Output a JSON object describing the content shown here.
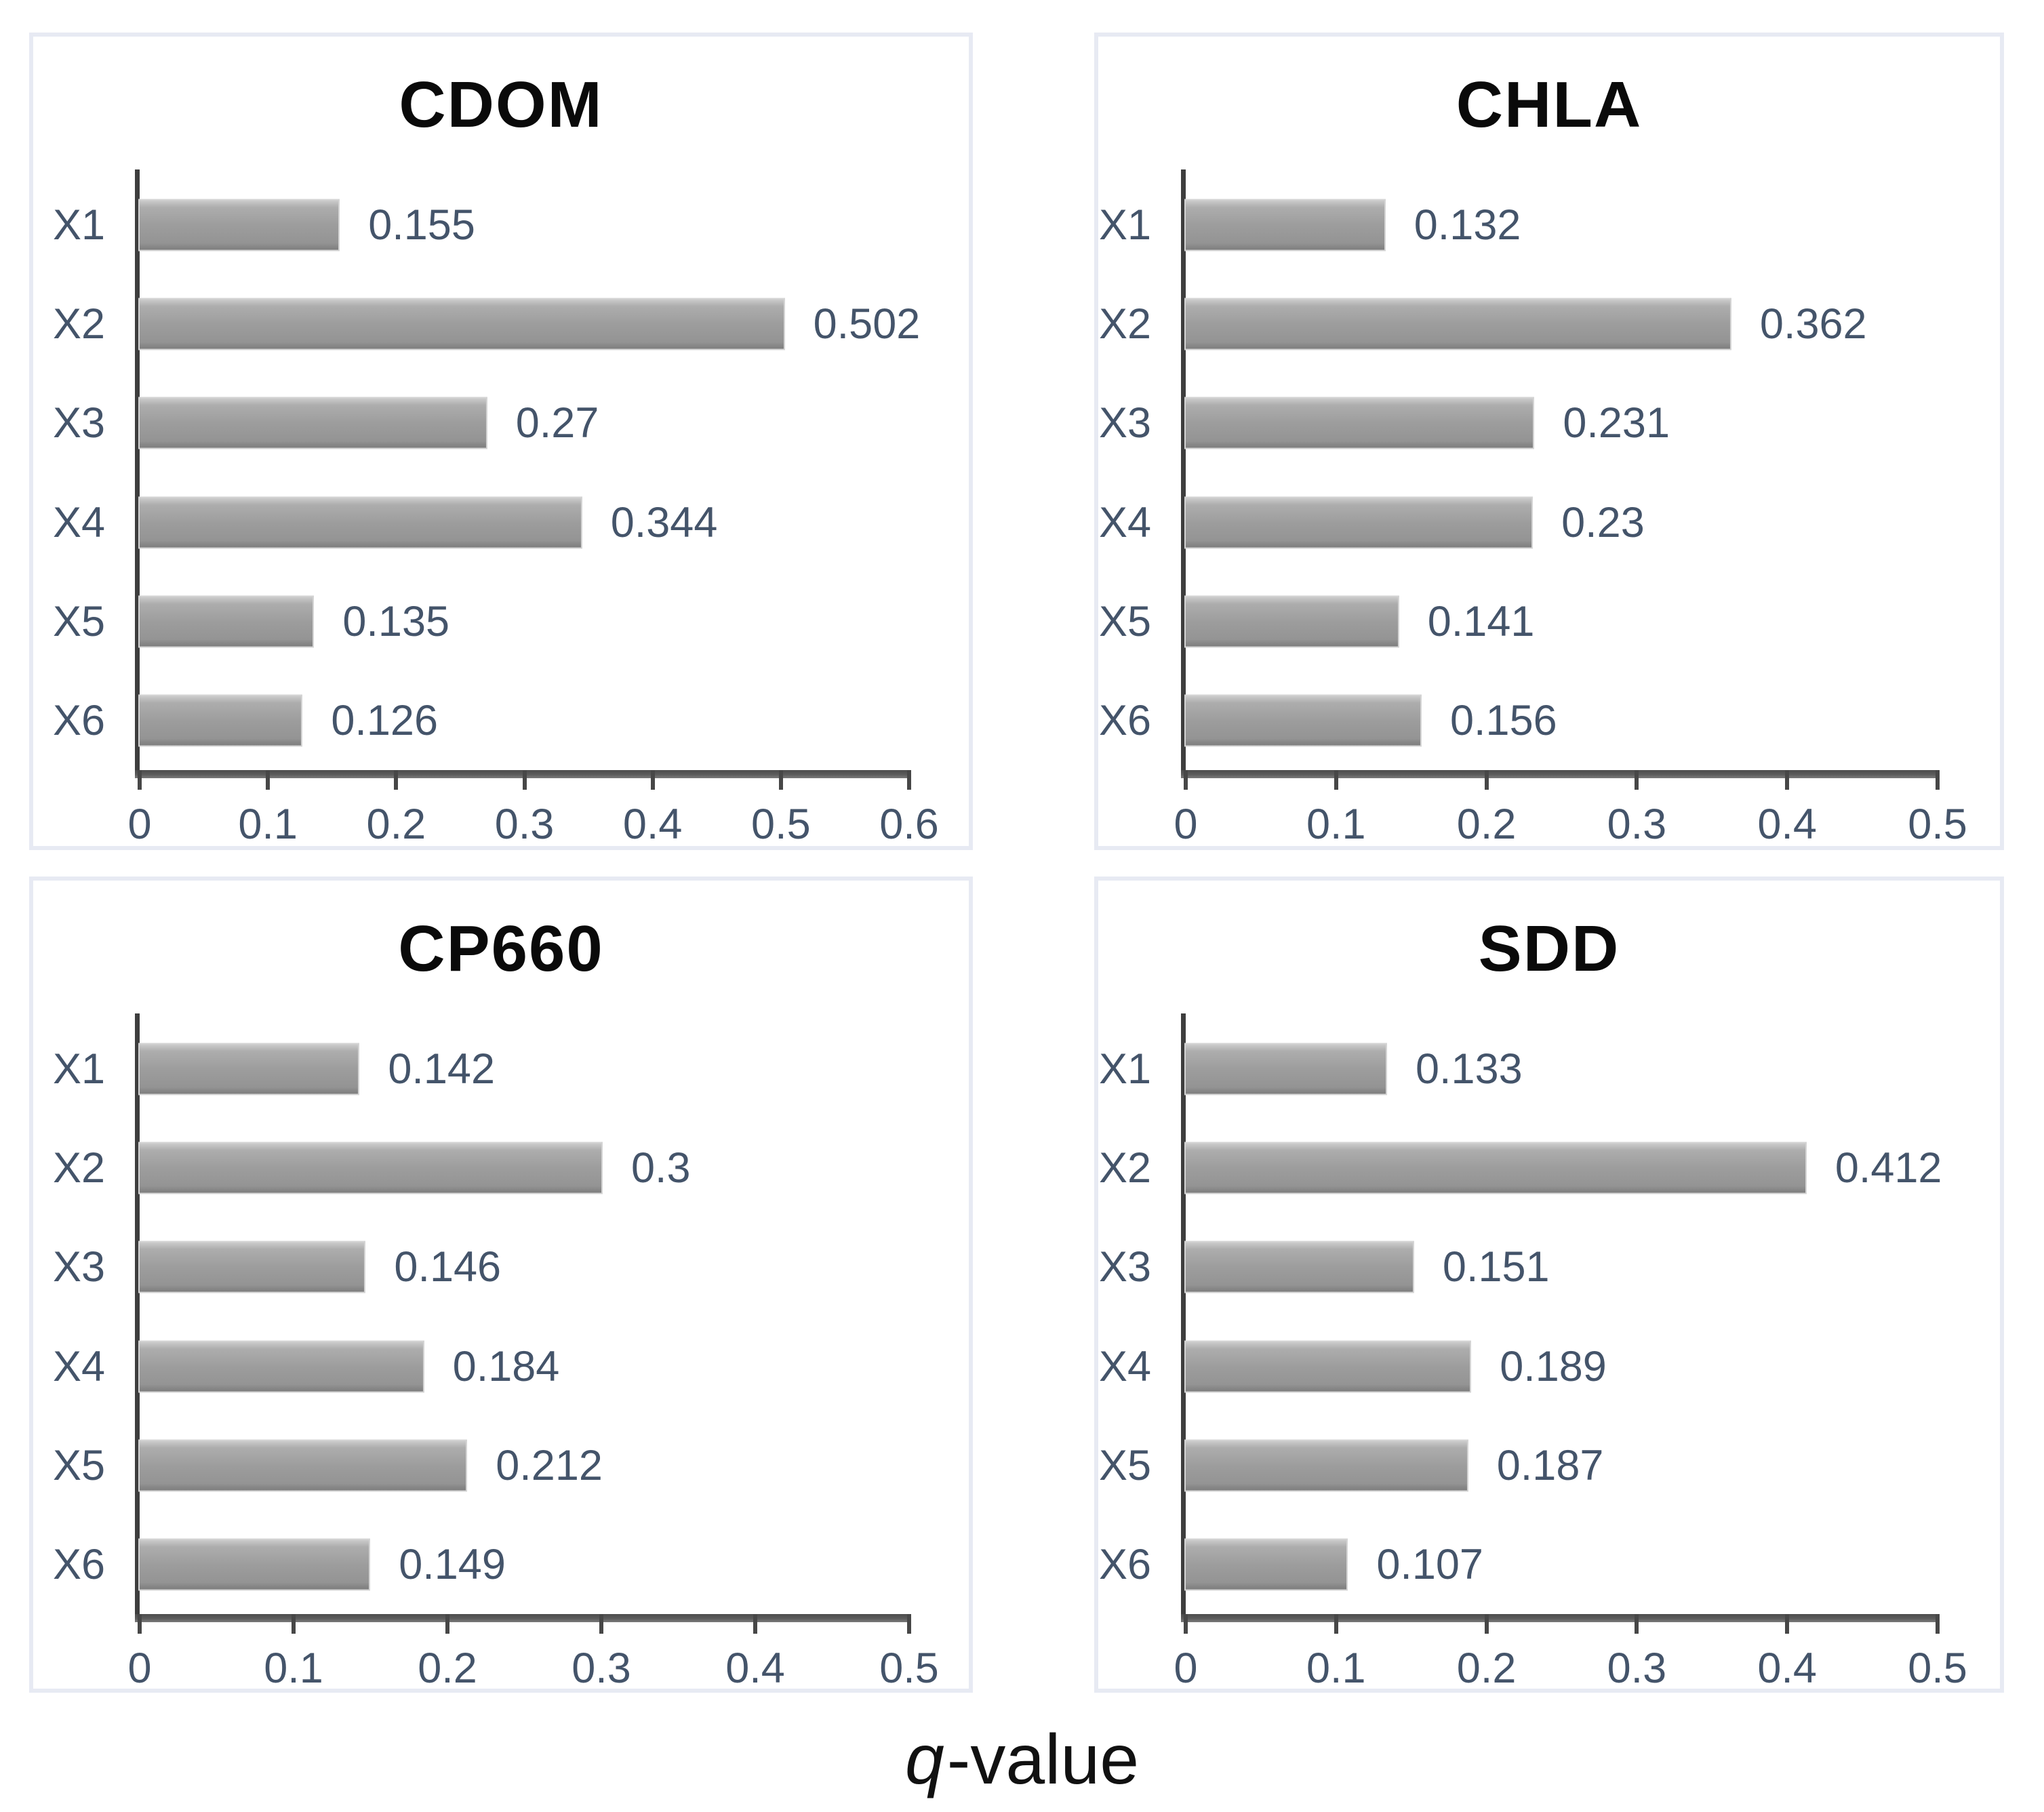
{
  "figure": {
    "xlabel": {
      "italic": "q",
      "rest": "-value"
    },
    "colors": {
      "bar_fill": "#9d9d9d",
      "bar_fill_light": "#cccccc",
      "bar_fill_dark": "#7d7d7d",
      "label_text": "#44546a",
      "title_text": "#0a0a0a",
      "axis_line": "#4c4c4c",
      "panel_border": "#e7eaf3",
      "background": "#ffffff"
    }
  },
  "chart_data": [
    {
      "type": "bar",
      "orientation": "horizontal",
      "title": "CDOM",
      "categories": [
        "X1",
        "X2",
        "X3",
        "X4",
        "X5",
        "X6"
      ],
      "values": [
        0.155,
        0.502,
        0.27,
        0.344,
        0.135,
        0.126
      ],
      "value_labels": [
        "0.155",
        "0.502",
        "0.27",
        "0.344",
        "0.135",
        "0.126"
      ],
      "xlim": [
        0,
        0.6
      ],
      "xticks": [
        "0",
        "0.1",
        "0.2",
        "0.3",
        "0.4",
        "0.5",
        "0.6"
      ],
      "grid": false,
      "legend": false
    },
    {
      "type": "bar",
      "orientation": "horizontal",
      "title": "CHLA",
      "categories": [
        "X1",
        "X2",
        "X3",
        "X4",
        "X5",
        "X6"
      ],
      "values": [
        0.132,
        0.362,
        0.231,
        0.23,
        0.141,
        0.156
      ],
      "value_labels": [
        "0.132",
        "0.362",
        "0.231",
        "0.23",
        "0.141",
        "0.156"
      ],
      "xlim": [
        0,
        0.5
      ],
      "xticks": [
        "0",
        "0.1",
        "0.2",
        "0.3",
        "0.4",
        "0.5"
      ],
      "grid": false,
      "legend": false
    },
    {
      "type": "bar",
      "orientation": "horizontal",
      "title": "CP660",
      "categories": [
        "X1",
        "X2",
        "X3",
        "X4",
        "X5",
        "X6"
      ],
      "values": [
        0.142,
        0.3,
        0.146,
        0.184,
        0.212,
        0.149
      ],
      "value_labels": [
        "0.142",
        "0.3",
        "0.146",
        "0.184",
        "0.212",
        "0.149"
      ],
      "xlim": [
        0,
        0.5
      ],
      "xticks": [
        "0",
        "0.1",
        "0.2",
        "0.3",
        "0.4",
        "0.5"
      ],
      "grid": false,
      "legend": false
    },
    {
      "type": "bar",
      "orientation": "horizontal",
      "title": "SDD",
      "categories": [
        "X1",
        "X2",
        "X3",
        "X4",
        "X5",
        "X6"
      ],
      "values": [
        0.133,
        0.412,
        0.151,
        0.189,
        0.187,
        0.107
      ],
      "value_labels": [
        "0.133",
        "0.412",
        "0.151",
        "0.189",
        "0.187",
        "0.107"
      ],
      "xlim": [
        0,
        0.5
      ],
      "xticks": [
        "0",
        "0.1",
        "0.2",
        "0.3",
        "0.4",
        "0.5"
      ],
      "grid": false,
      "legend": false
    }
  ]
}
